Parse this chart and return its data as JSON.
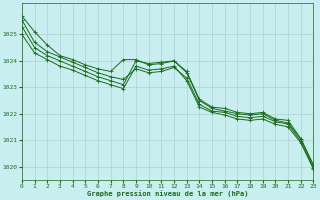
{
  "xlabel": "Graphe pression niveau de la mer (hPa)",
  "background_color": "#c8eef0",
  "grid_color": "#b0d0d0",
  "line_color": "#1a6b1a",
  "marker_color": "#1a6b1a",
  "x_ticks": [
    0,
    1,
    2,
    3,
    4,
    5,
    6,
    7,
    8,
    9,
    10,
    11,
    12,
    13,
    14,
    15,
    16,
    17,
    18,
    19,
    20,
    21,
    22,
    23
  ],
  "xlim": [
    0,
    23
  ],
  "ylim": [
    1019.5,
    1026.2
  ],
  "y_ticks": [
    1020,
    1021,
    1022,
    1023,
    1024,
    1025
  ],
  "series": [
    [
      1025.7,
      1025.1,
      1024.6,
      1024.2,
      1024.05,
      1023.85,
      1023.7,
      1023.6,
      1024.05,
      1024.05,
      1023.85,
      1023.9,
      1024.0,
      1023.6,
      1022.55,
      1022.25,
      1022.2,
      1022.05,
      1022.0,
      1022.05,
      1021.8,
      1021.75,
      1021.05,
      1020.05
    ],
    [
      1025.55,
      1024.7,
      1024.35,
      1024.15,
      1023.95,
      1023.75,
      1023.55,
      1023.4,
      1023.3,
      1023.7,
      1023.55,
      1023.6,
      1023.75,
      1023.35,
      1022.35,
      1022.1,
      1022.05,
      1021.9,
      1021.85,
      1021.9,
      1021.7,
      1021.6,
      1020.95,
      1019.95
    ],
    [
      1025.3,
      1024.5,
      1024.2,
      1024.0,
      1023.8,
      1023.6,
      1023.4,
      1023.25,
      1023.1,
      1024.0,
      1023.9,
      1023.95,
      1024.0,
      1023.55,
      1022.5,
      1022.2,
      1022.1,
      1022.0,
      1021.95,
      1022.0,
      1021.75,
      1021.65,
      1021.05,
      1020.05
    ],
    [
      1025.0,
      1024.3,
      1024.05,
      1023.8,
      1023.65,
      1023.45,
      1023.25,
      1023.1,
      1022.95,
      1023.8,
      1023.65,
      1023.7,
      1023.8,
      1023.25,
      1022.25,
      1022.05,
      1021.95,
      1021.8,
      1021.75,
      1021.8,
      1021.6,
      1021.5,
      1020.9,
      1019.9
    ]
  ]
}
